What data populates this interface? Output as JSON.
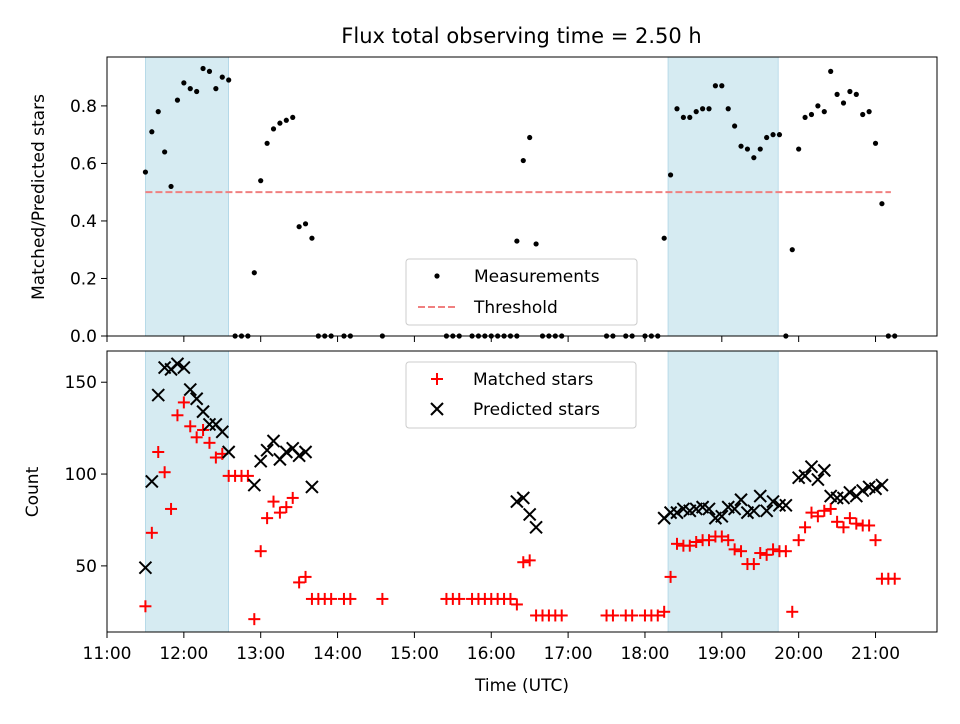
{
  "figure": {
    "title": "Flux total observing time = 2.50 h",
    "xlabel": "Time (UTC)",
    "xticks": [
      "11:00",
      "12:00",
      "13:00",
      "14:00",
      "15:00",
      "16:00",
      "17:00",
      "18:00",
      "19:00",
      "20:00",
      "21:00"
    ]
  },
  "chart_data": [
    {
      "type": "scatter",
      "panel": "top",
      "ylabel": "Matched/Predicted stars",
      "ylim": [
        0,
        0.97
      ],
      "yticks": [
        "0.0",
        "0.2",
        "0.4",
        "0.6",
        "0.8"
      ],
      "xlim": [
        "11:00",
        "21:48"
      ],
      "shaded_intervals": [
        [
          "11:30",
          "12:35"
        ],
        [
          "18:18",
          "19:44"
        ]
      ],
      "legend": {
        "placement": "bottom-center",
        "entries": [
          "Measurements",
          "Threshold"
        ]
      },
      "threshold": {
        "name": "Threshold",
        "value": 0.5,
        "x": [
          "11:30",
          "21:12"
        ],
        "color": "#f08080"
      },
      "series": [
        {
          "name": "Measurements",
          "color": "#000000",
          "points": [
            [
              "11:30",
              0.57
            ],
            [
              "11:35",
              0.71
            ],
            [
              "11:40",
              0.78
            ],
            [
              "11:45",
              0.64
            ],
            [
              "11:50",
              0.52
            ],
            [
              "11:55",
              0.82
            ],
            [
              "12:00",
              0.88
            ],
            [
              "12:05",
              0.86
            ],
            [
              "12:10",
              0.85
            ],
            [
              "12:15",
              0.93
            ],
            [
              "12:20",
              0.92
            ],
            [
              "12:25",
              0.86
            ],
            [
              "12:30",
              0.9
            ],
            [
              "12:35",
              0.89
            ],
            [
              "12:40",
              0.0
            ],
            [
              "12:45",
              0.0
            ],
            [
              "12:50",
              0.0
            ],
            [
              "12:55",
              0.22
            ],
            [
              "13:00",
              0.54
            ],
            [
              "13:05",
              0.67
            ],
            [
              "13:10",
              0.72
            ],
            [
              "13:15",
              0.74
            ],
            [
              "13:20",
              0.75
            ],
            [
              "13:25",
              0.76
            ],
            [
              "13:30",
              0.38
            ],
            [
              "13:35",
              0.39
            ],
            [
              "13:40",
              0.34
            ],
            [
              "13:45",
              0.0
            ],
            [
              "13:50",
              0.0
            ],
            [
              "13:55",
              0.0
            ],
            [
              "14:05",
              0.0
            ],
            [
              "14:10",
              0.0
            ],
            [
              "14:35",
              0.0
            ],
            [
              "15:25",
              0.0
            ],
            [
              "15:30",
              0.0
            ],
            [
              "15:35",
              0.0
            ],
            [
              "15:45",
              0.0
            ],
            [
              "15:50",
              0.0
            ],
            [
              "15:55",
              0.0
            ],
            [
              "16:00",
              0.0
            ],
            [
              "16:05",
              0.0
            ],
            [
              "16:10",
              0.0
            ],
            [
              "16:15",
              0.0
            ],
            [
              "16:20",
              0.0
            ],
            [
              "16:20",
              0.33
            ],
            [
              "16:25",
              0.61
            ],
            [
              "16:30",
              0.69
            ],
            [
              "16:35",
              0.32
            ],
            [
              "16:40",
              0.0
            ],
            [
              "16:45",
              0.0
            ],
            [
              "16:50",
              0.0
            ],
            [
              "16:55",
              0.0
            ],
            [
              "17:30",
              0.0
            ],
            [
              "17:35",
              0.0
            ],
            [
              "17:45",
              0.0
            ],
            [
              "17:50",
              0.0
            ],
            [
              "18:00",
              0.0
            ],
            [
              "18:05",
              0.0
            ],
            [
              "18:10",
              0.0
            ],
            [
              "18:15",
              0.34
            ],
            [
              "18:20",
              0.56
            ],
            [
              "18:25",
              0.79
            ],
            [
              "18:30",
              0.76
            ],
            [
              "18:35",
              0.76
            ],
            [
              "18:40",
              0.78
            ],
            [
              "18:45",
              0.79
            ],
            [
              "18:50",
              0.79
            ],
            [
              "18:55",
              0.87
            ],
            [
              "19:00",
              0.87
            ],
            [
              "19:05",
              0.79
            ],
            [
              "19:10",
              0.73
            ],
            [
              "19:15",
              0.66
            ],
            [
              "19:20",
              0.65
            ],
            [
              "19:25",
              0.62
            ],
            [
              "19:30",
              0.65
            ],
            [
              "19:35",
              0.69
            ],
            [
              "19:40",
              0.7
            ],
            [
              "19:45",
              0.7
            ],
            [
              "19:50",
              0.0
            ],
            [
              "19:55",
              0.3
            ],
            [
              "20:00",
              0.65
            ],
            [
              "20:05",
              0.76
            ],
            [
              "20:10",
              0.77
            ],
            [
              "20:15",
              0.8
            ],
            [
              "20:20",
              0.78
            ],
            [
              "20:25",
              0.92
            ],
            [
              "20:30",
              0.84
            ],
            [
              "20:35",
              0.81
            ],
            [
              "20:40",
              0.85
            ],
            [
              "20:45",
              0.84
            ],
            [
              "20:50",
              0.77
            ],
            [
              "20:55",
              0.78
            ],
            [
              "21:00",
              0.67
            ],
            [
              "21:05",
              0.46
            ],
            [
              "21:10",
              0.0
            ],
            [
              "21:15",
              0.0
            ]
          ]
        }
      ]
    },
    {
      "type": "scatter",
      "panel": "bottom",
      "ylabel": "Count",
      "ylim": [
        14,
        167
      ],
      "yticks": [
        "50",
        "100",
        "150"
      ],
      "xlim": [
        "11:00",
        "21:48"
      ],
      "shaded_intervals": [
        [
          "11:30",
          "12:35"
        ],
        [
          "18:18",
          "19:44"
        ]
      ],
      "legend": {
        "placement": "top-center",
        "entries": [
          "Matched stars",
          "Predicted stars"
        ]
      },
      "series": [
        {
          "name": "Matched stars",
          "marker": "+",
          "color": "#ff0000",
          "points": [
            [
              "11:30",
              28
            ],
            [
              "11:35",
              68
            ],
            [
              "11:40",
              112
            ],
            [
              "11:45",
              101
            ],
            [
              "11:50",
              81
            ],
            [
              "11:55",
              132
            ],
            [
              "12:00",
              139
            ],
            [
              "12:05",
              126
            ],
            [
              "12:10",
              120
            ],
            [
              "12:15",
              124
            ],
            [
              "12:20",
              117
            ],
            [
              "12:25",
              109
            ],
            [
              "12:30",
              111
            ],
            [
              "12:35",
              99
            ],
            [
              "12:40",
              99
            ],
            [
              "12:45",
              99
            ],
            [
              "12:50",
              99
            ],
            [
              "12:55",
              21
            ],
            [
              "13:00",
              58
            ],
            [
              "13:05",
              76
            ],
            [
              "13:10",
              85
            ],
            [
              "13:15",
              79
            ],
            [
              "13:20",
              82
            ],
            [
              "13:25",
              87
            ],
            [
              "13:30",
              41
            ],
            [
              "13:35",
              44
            ],
            [
              "13:40",
              32
            ],
            [
              "13:45",
              32
            ],
            [
              "13:50",
              32
            ],
            [
              "13:55",
              32
            ],
            [
              "14:05",
              32
            ],
            [
              "14:10",
              32
            ],
            [
              "14:35",
              32
            ],
            [
              "15:25",
              32
            ],
            [
              "15:30",
              32
            ],
            [
              "15:35",
              32
            ],
            [
              "15:45",
              32
            ],
            [
              "15:50",
              32
            ],
            [
              "15:55",
              32
            ],
            [
              "16:00",
              32
            ],
            [
              "16:05",
              32
            ],
            [
              "16:10",
              32
            ],
            [
              "16:15",
              32
            ],
            [
              "16:20",
              29
            ],
            [
              "16:25",
              52
            ],
            [
              "16:30",
              53
            ],
            [
              "16:35",
              23
            ],
            [
              "16:40",
              23
            ],
            [
              "16:45",
              23
            ],
            [
              "16:50",
              23
            ],
            [
              "16:55",
              23
            ],
            [
              "17:30",
              23
            ],
            [
              "17:35",
              23
            ],
            [
              "17:45",
              23
            ],
            [
              "17:50",
              23
            ],
            [
              "18:00",
              23
            ],
            [
              "18:05",
              23
            ],
            [
              "18:10",
              23
            ],
            [
              "18:15",
              25
            ],
            [
              "18:20",
              44
            ],
            [
              "18:25",
              62
            ],
            [
              "18:30",
              61
            ],
            [
              "18:35",
              61
            ],
            [
              "18:40",
              63
            ],
            [
              "18:45",
              64
            ],
            [
              "18:50",
              64
            ],
            [
              "18:55",
              66
            ],
            [
              "19:00",
              66
            ],
            [
              "19:05",
              64
            ],
            [
              "19:10",
              59
            ],
            [
              "19:15",
              58
            ],
            [
              "19:20",
              51
            ],
            [
              "19:25",
              51
            ],
            [
              "19:30",
              57
            ],
            [
              "19:35",
              56
            ],
            [
              "19:40",
              59
            ],
            [
              "19:45",
              58
            ],
            [
              "19:50",
              58
            ],
            [
              "19:55",
              25
            ],
            [
              "20:00",
              64
            ],
            [
              "20:05",
              71
            ],
            [
              "20:10",
              79
            ],
            [
              "20:15",
              77
            ],
            [
              "20:20",
              80
            ],
            [
              "20:25",
              81
            ],
            [
              "20:30",
              74
            ],
            [
              "20:35",
              71
            ],
            [
              "20:40",
              76
            ],
            [
              "20:45",
              73
            ],
            [
              "20:50",
              72
            ],
            [
              "20:55",
              72
            ],
            [
              "21:00",
              64
            ],
            [
              "21:05",
              43
            ],
            [
              "21:10",
              43
            ],
            [
              "21:15",
              43
            ]
          ]
        },
        {
          "name": "Predicted stars",
          "marker": "x",
          "color": "#000000",
          "points": [
            [
              "11:30",
              49
            ],
            [
              "11:35",
              96
            ],
            [
              "11:40",
              143
            ],
            [
              "11:45",
              158
            ],
            [
              "11:50",
              157
            ],
            [
              "11:55",
              160
            ],
            [
              "12:00",
              158
            ],
            [
              "12:05",
              146
            ],
            [
              "12:10",
              141
            ],
            [
              "12:15",
              134
            ],
            [
              "12:20",
              127
            ],
            [
              "12:25",
              127
            ],
            [
              "12:30",
              123
            ],
            [
              "12:35",
              112
            ],
            [
              "12:55",
              94
            ],
            [
              "13:00",
              107
            ],
            [
              "13:05",
              113
            ],
            [
              "13:10",
              118
            ],
            [
              "13:15",
              108
            ],
            [
              "13:20",
              112
            ],
            [
              "13:25",
              114
            ],
            [
              "13:30",
              110
            ],
            [
              "13:35",
              112
            ],
            [
              "13:40",
              93
            ],
            [
              "16:20",
              85
            ],
            [
              "16:25",
              87
            ],
            [
              "16:30",
              78
            ],
            [
              "16:35",
              71
            ],
            [
              "18:15",
              76
            ],
            [
              "18:20",
              79
            ],
            [
              "18:25",
              79
            ],
            [
              "18:30",
              81
            ],
            [
              "18:35",
              80
            ],
            [
              "18:40",
              81
            ],
            [
              "18:45",
              82
            ],
            [
              "18:50",
              81
            ],
            [
              "18:55",
              76
            ],
            [
              "19:00",
              77
            ],
            [
              "19:05",
              82
            ],
            [
              "19:10",
              81
            ],
            [
              "19:15",
              86
            ],
            [
              "19:20",
              79
            ],
            [
              "19:25",
              80
            ],
            [
              "19:30",
              88
            ],
            [
              "19:35",
              80
            ],
            [
              "19:40",
              85
            ],
            [
              "19:45",
              83
            ],
            [
              "19:50",
              83
            ],
            [
              "20:00",
              98
            ],
            [
              "20:05",
              99
            ],
            [
              "20:10",
              104
            ],
            [
              "20:15",
              97
            ],
            [
              "20:20",
              102
            ],
            [
              "20:25",
              88
            ],
            [
              "20:30",
              87
            ],
            [
              "20:35",
              87
            ],
            [
              "20:40",
              90
            ],
            [
              "20:45",
              88
            ],
            [
              "20:50",
              91
            ],
            [
              "20:55",
              93
            ],
            [
              "21:00",
              92
            ],
            [
              "21:05",
              94
            ]
          ]
        }
      ]
    }
  ]
}
